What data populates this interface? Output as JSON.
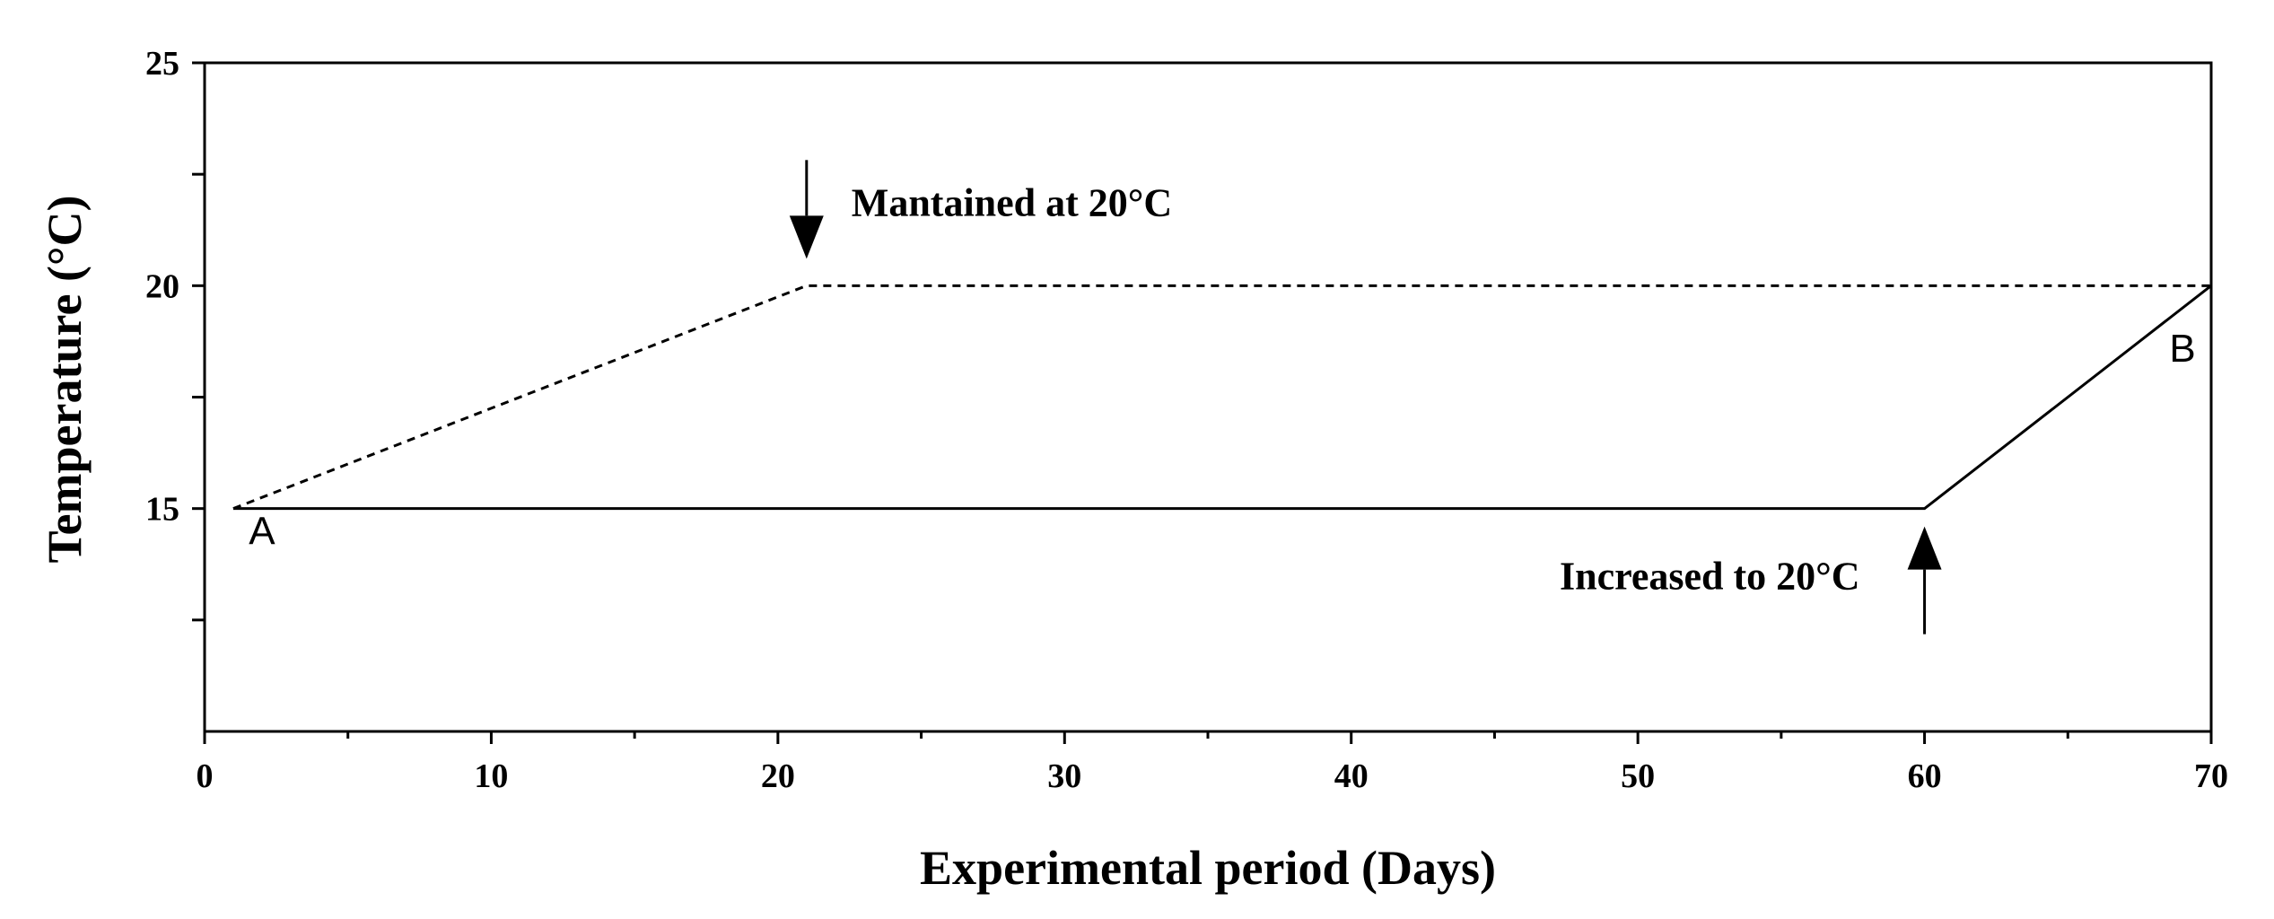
{
  "chart_data": {
    "type": "line",
    "title": "",
    "xlabel": "Experimental period (Days)",
    "ylabel": "Temperature (°C)",
    "xlim": [
      0,
      70
    ],
    "ylim": [
      10,
      25
    ],
    "x_ticks": [
      0,
      10,
      20,
      30,
      40,
      50,
      60,
      70
    ],
    "y_ticks_labeled": [
      15,
      20,
      25
    ],
    "y_ticks_minor": [
      12.5,
      17.5,
      22.5
    ],
    "grid": false,
    "series": [
      {
        "name": "A",
        "style": "solid",
        "points": [
          {
            "x": 1,
            "y": 15
          },
          {
            "x": 60,
            "y": 15
          },
          {
            "x": 70,
            "y": 20
          }
        ]
      },
      {
        "name": "dashed",
        "style": "dashed",
        "points": [
          {
            "x": 1,
            "y": 15
          },
          {
            "x": 21,
            "y": 20
          },
          {
            "x": 70,
            "y": 20
          }
        ]
      }
    ],
    "annotations": [
      {
        "text": "Mantained at 20°C",
        "x": 21,
        "y": 20,
        "arrow": "down"
      },
      {
        "text": "Increased to 20°C",
        "x": 60,
        "y": 15,
        "arrow": "up"
      }
    ],
    "point_labels": [
      {
        "text": "A",
        "x": 2,
        "y": 14.2
      },
      {
        "text": "B",
        "x": 69,
        "y": 18.3
      }
    ]
  }
}
